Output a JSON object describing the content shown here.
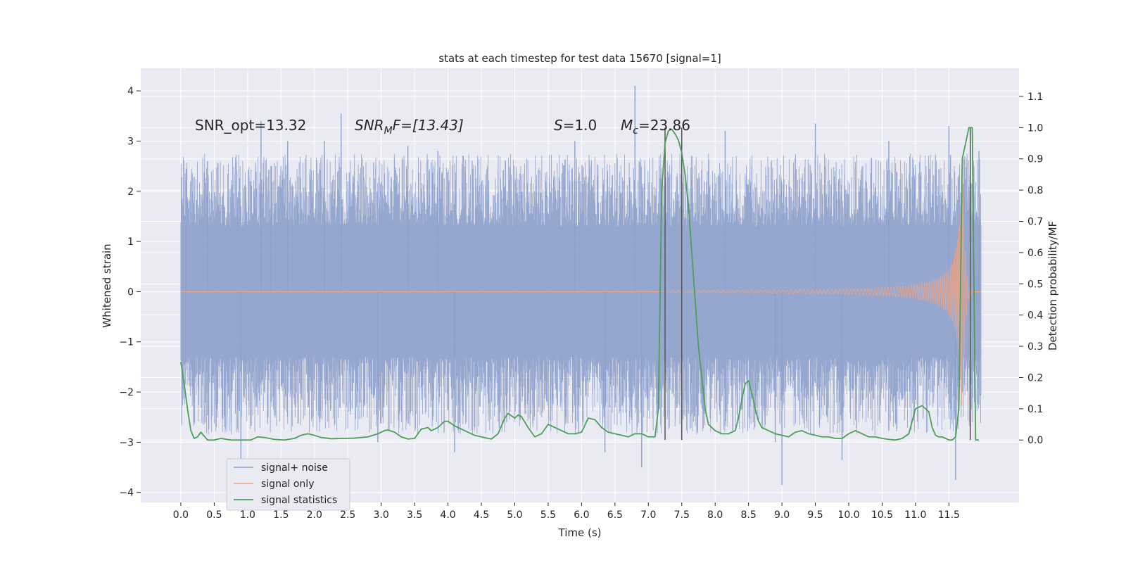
{
  "chart_data": {
    "type": "line",
    "title": "stats at each timestep for test data 15670 [signal=1]",
    "xlabel": "Time (s)",
    "ylabel_left": "Whitened strain",
    "ylabel_right": "Detection probability/MF",
    "xlim": [
      -0.6,
      12.55
    ],
    "ylim_left": [
      -4.2,
      4.45
    ],
    "ylim_right": [
      -0.2,
      1.19
    ],
    "x_ticks": [
      0.0,
      0.5,
      1.0,
      1.5,
      2.0,
      2.5,
      3.0,
      3.5,
      4.0,
      4.5,
      5.0,
      5.5,
      6.0,
      6.5,
      7.0,
      7.5,
      8.0,
      8.5,
      9.0,
      9.5,
      10.0,
      10.5,
      11.0,
      11.5
    ],
    "x_tick_labels": [
      "0.0",
      "0.5",
      "1.0",
      "1.5",
      "2.0",
      "2.5",
      "3.0",
      "3.5",
      "4.0",
      "4.5",
      "5.0",
      "5.5",
      "6.0",
      "6.5",
      "7.0",
      "7.5",
      "8.0",
      "8.5",
      "9.0",
      "9.5",
      "10.0",
      "10.5",
      "11.0",
      "11.5"
    ],
    "y_left_ticks": [
      -4,
      -3,
      -2,
      -1,
      0,
      1,
      2,
      3,
      4
    ],
    "y_left_tick_labels": [
      "−4",
      "−3",
      "−2",
      "−1",
      "0",
      "1",
      "2",
      "3",
      "4"
    ],
    "y_right_ticks": [
      0.0,
      0.1,
      0.2,
      0.3,
      0.4,
      0.5,
      0.6,
      0.7,
      0.8,
      0.9,
      1.0,
      1.1
    ],
    "y_right_tick_labels": [
      "0.0",
      "0.1",
      "0.2",
      "0.3",
      "0.4",
      "0.5",
      "0.6",
      "0.7",
      "0.8",
      "0.9",
      "1.0",
      "1.1"
    ],
    "grid": true,
    "legend_position": "lower-left",
    "annotations": {
      "snr_opt": "SNR_opt=13.32",
      "snr_mf_main": "SNR",
      "snr_mf_sub": "M",
      "snr_mf_rest": "F=[13.43]",
      "s_main": "S",
      "s_rest": "=1.0",
      "mc_main": "M",
      "mc_sub": "c",
      "mc_rest": "=23.86"
    },
    "vertical_lines_x": [
      7.25,
      7.5,
      11.82
    ],
    "vertical_lines_y_range": [
      0.0,
      1.0
    ],
    "series": [
      {
        "name": "signal+ noise",
        "axis": "left",
        "color": "#8da0cb",
        "noise_envelope": {
          "x_range": [
            0.0,
            11.98
          ],
          "core_band": [
            -1.3,
            1.3
          ],
          "max": 4.1,
          "min": -3.75
        },
        "spikes": [
          {
            "x": 0.08,
            "y": 2.45
          },
          {
            "x": 0.4,
            "y": 2.6
          },
          {
            "x": 0.9,
            "y": -3.5
          },
          {
            "x": 1.2,
            "y": 3.4
          },
          {
            "x": 1.35,
            "y": 2.5
          },
          {
            "x": 1.6,
            "y": 3.0
          },
          {
            "x": 2.15,
            "y": 3.0
          },
          {
            "x": 2.4,
            "y": 3.55
          },
          {
            "x": 2.95,
            "y": -3.0
          },
          {
            "x": 3.4,
            "y": 2.9
          },
          {
            "x": 3.85,
            "y": 2.8
          },
          {
            "x": 4.1,
            "y": -3.2
          },
          {
            "x": 5.9,
            "y": 3.0
          },
          {
            "x": 6.35,
            "y": -3.2
          },
          {
            "x": 6.8,
            "y": 4.1
          },
          {
            "x": 6.9,
            "y": -3.5
          },
          {
            "x": 8.15,
            "y": 3.2
          },
          {
            "x": 8.9,
            "y": -3.0
          },
          {
            "x": 9.0,
            "y": -3.85
          },
          {
            "x": 9.5,
            "y": 3.35
          },
          {
            "x": 9.9,
            "y": -3.35
          },
          {
            "x": 10.6,
            "y": 3.0
          },
          {
            "x": 11.5,
            "y": 3.3
          },
          {
            "x": 11.6,
            "y": -3.75
          },
          {
            "x": 11.95,
            "y": 2.8
          }
        ]
      },
      {
        "name": "signal only",
        "axis": "left",
        "color": "#e8a489",
        "chirp": {
          "x_start": 7.2,
          "x_end": 11.7,
          "amp_start": 0.02,
          "amp_end": 2.7,
          "x_ringdown_end": 11.85
        }
      },
      {
        "name": "signal statistics",
        "axis": "right",
        "color": "#4c9e5a",
        "x": [
          0.0,
          0.05,
          0.1,
          0.15,
          0.2,
          0.25,
          0.3,
          0.4,
          0.5,
          0.6,
          0.75,
          0.9,
          1.05,
          1.15,
          1.25,
          1.4,
          1.55,
          1.7,
          1.8,
          1.9,
          2.0,
          2.1,
          2.25,
          2.4,
          2.6,
          2.8,
          2.95,
          3.05,
          3.1,
          3.2,
          3.3,
          3.4,
          3.5,
          3.6,
          3.7,
          3.75,
          3.85,
          3.95,
          4.0,
          4.1,
          4.2,
          4.3,
          4.4,
          4.5,
          4.6,
          4.65,
          4.75,
          4.85,
          4.9,
          5.0,
          5.05,
          5.1,
          5.2,
          5.3,
          5.4,
          5.5,
          5.6,
          5.7,
          5.8,
          5.9,
          6.0,
          6.1,
          6.2,
          6.3,
          6.4,
          6.5,
          6.6,
          6.7,
          6.8,
          6.9,
          7.0,
          7.1,
          7.15,
          7.2,
          7.25,
          7.3,
          7.35,
          7.4,
          7.45,
          7.5,
          7.55,
          7.6,
          7.65,
          7.7,
          7.75,
          7.8,
          7.85,
          7.9,
          8.0,
          8.1,
          8.2,
          8.3,
          8.35,
          8.4,
          8.45,
          8.5,
          8.55,
          8.6,
          8.65,
          8.7,
          8.8,
          8.9,
          9.0,
          9.1,
          9.2,
          9.3,
          9.4,
          9.5,
          9.6,
          9.7,
          9.8,
          9.9,
          10.0,
          10.1,
          10.2,
          10.3,
          10.4,
          10.5,
          10.6,
          10.7,
          10.8,
          10.9,
          11.0,
          11.1,
          11.2,
          11.25,
          11.3,
          11.35,
          11.4,
          11.45,
          11.5,
          11.55,
          11.6,
          11.65,
          11.7,
          11.75,
          11.8,
          11.85,
          11.9,
          11.95
        ],
        "values": [
          0.25,
          0.18,
          0.1,
          0.03,
          0.005,
          0.01,
          0.025,
          0.0,
          0.0,
          0.005,
          0.0,
          0.0,
          0.0,
          0.01,
          0.008,
          0.002,
          0.0,
          0.005,
          0.015,
          0.02,
          0.015,
          0.008,
          0.004,
          0.005,
          0.006,
          0.01,
          0.02,
          0.03,
          0.032,
          0.025,
          0.01,
          0.003,
          0.005,
          0.035,
          0.04,
          0.03,
          0.04,
          0.06,
          0.06,
          0.045,
          0.035,
          0.025,
          0.015,
          0.01,
          0.005,
          0.003,
          0.02,
          0.07,
          0.085,
          0.07,
          0.08,
          0.075,
          0.04,
          0.01,
          0.02,
          0.05,
          0.04,
          0.03,
          0.02,
          0.02,
          0.025,
          0.07,
          0.065,
          0.04,
          0.025,
          0.02,
          0.015,
          0.01,
          0.02,
          0.02,
          0.01,
          0.01,
          0.1,
          0.8,
          0.95,
          0.99,
          0.995,
          0.98,
          0.96,
          0.92,
          0.85,
          0.75,
          0.6,
          0.45,
          0.3,
          0.2,
          0.1,
          0.05,
          0.03,
          0.02,
          0.02,
          0.03,
          0.07,
          0.13,
          0.18,
          0.19,
          0.15,
          0.1,
          0.06,
          0.04,
          0.03,
          0.02,
          0.015,
          0.01,
          0.025,
          0.03,
          0.02,
          0.015,
          0.01,
          0.01,
          0.005,
          0.005,
          0.02,
          0.03,
          0.02,
          0.01,
          0.01,
          0.005,
          0.002,
          0.0,
          0.005,
          0.02,
          0.1,
          0.11,
          0.09,
          0.04,
          0.015,
          0.01,
          0.01,
          0.005,
          0.0,
          0.0,
          0.01,
          0.1,
          0.9,
          0.95,
          1.0,
          1.0,
          0.0,
          0.0
        ]
      }
    ]
  }
}
